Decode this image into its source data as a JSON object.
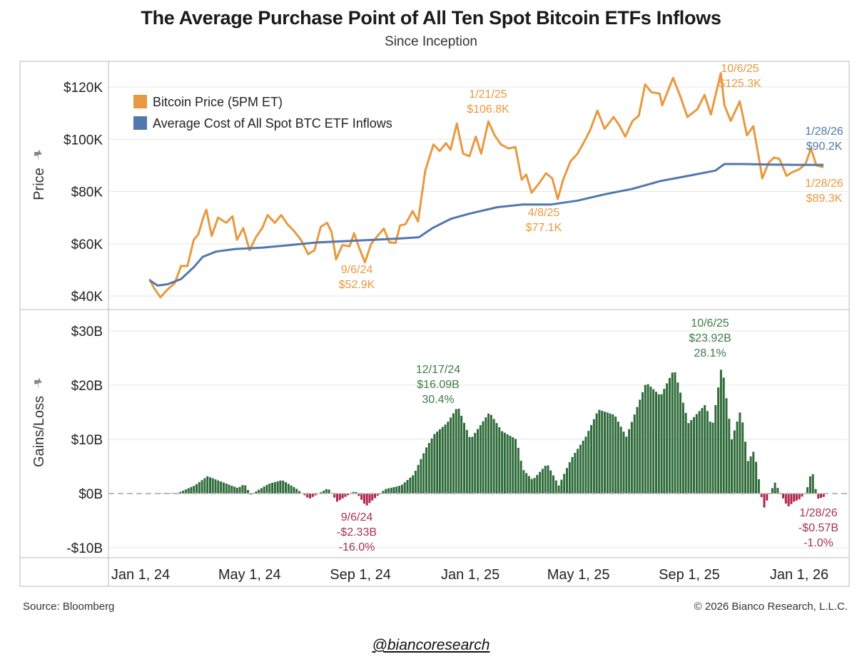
{
  "header": {
    "title": "The Average Purchase Point of All Ten Spot Bitcoin ETFs Inflows",
    "subtitle": "Since Inception"
  },
  "footer": {
    "source": "Source: Bloomberg",
    "copyright": "© 2026 Bianco Research, L.L.C.",
    "handle": "@biancoresearch"
  },
  "colors": {
    "btc_price": "#E8993F",
    "avg_cost": "#5178AC",
    "gain_bar": "#2F6B3A",
    "loss_bar": "#B0284A",
    "gain_label": "#3E7B45",
    "loss_label": "#A3334F",
    "grid": "#E6E6E6",
    "frame": "#BBBBBB"
  },
  "icons": [
    "pin-icon"
  ],
  "chart_data": [
    {
      "type": "line",
      "ylabel": "Price",
      "ylim": [
        40000,
        130000
      ],
      "yticks": [
        40000,
        60000,
        80000,
        100000,
        120000
      ],
      "ytick_labels": [
        "$40K",
        "$60K",
        "$80K",
        "$100K",
        "$120K"
      ],
      "xticks": [
        "2024-01-01",
        "2024-05-01",
        "2024-09-01",
        "2025-01-01",
        "2025-05-01",
        "2025-09-01",
        "2026-01-01"
      ],
      "xtick_labels": [
        "Jan 1, 24",
        "May 1, 24",
        "Sep 1, 24",
        "Jan 1, 25",
        "May 1, 25",
        "Sep 1, 25",
        "Jan 1, 26"
      ],
      "grid": true,
      "legend_position": "top-left",
      "series": [
        {
          "name": "Bitcoin Price (5PM ET)",
          "color": "#E8993F",
          "points": [
            [
              "2024-01-11",
              46500
            ],
            [
              "2024-01-16",
              43000
            ],
            [
              "2024-01-23",
              39500
            ],
            [
              "2024-01-31",
              42500
            ],
            [
              "2024-02-08",
              45000
            ],
            [
              "2024-02-15",
              51500
            ],
            [
              "2024-02-22",
              51500
            ],
            [
              "2024-02-29",
              61500
            ],
            [
              "2024-03-05",
              63500
            ],
            [
              "2024-03-11",
              70500
            ],
            [
              "2024-03-14",
              73000
            ],
            [
              "2024-03-20",
              63000
            ],
            [
              "2024-03-27",
              70000
            ],
            [
              "2024-04-05",
              68000
            ],
            [
              "2024-04-12",
              70500
            ],
            [
              "2024-04-17",
              61500
            ],
            [
              "2024-04-24",
              66000
            ],
            [
              "2024-05-01",
              57500
            ],
            [
              "2024-05-08",
              62500
            ],
            [
              "2024-05-15",
              66000
            ],
            [
              "2024-05-21",
              71000
            ],
            [
              "2024-05-29",
              68000
            ],
            [
              "2024-06-05",
              71000
            ],
            [
              "2024-06-12",
              67500
            ],
            [
              "2024-06-19",
              65000
            ],
            [
              "2024-06-27",
              61500
            ],
            [
              "2024-07-05",
              56000
            ],
            [
              "2024-07-12",
              57500
            ],
            [
              "2024-07-19",
              66500
            ],
            [
              "2024-07-26",
              68000
            ],
            [
              "2024-07-31",
              64500
            ],
            [
              "2024-08-05",
              54000
            ],
            [
              "2024-08-12",
              59500
            ],
            [
              "2024-08-20",
              59000
            ],
            [
              "2024-08-25",
              64000
            ],
            [
              "2024-08-30",
              59000
            ],
            [
              "2024-09-06",
              52900
            ],
            [
              "2024-09-13",
              60000
            ],
            [
              "2024-09-20",
              63000
            ],
            [
              "2024-09-27",
              65800
            ],
            [
              "2024-10-03",
              60600
            ],
            [
              "2024-10-10",
              60300
            ],
            [
              "2024-10-15",
              67000
            ],
            [
              "2024-10-21",
              67500
            ],
            [
              "2024-10-29",
              72500
            ],
            [
              "2024-11-04",
              68500
            ],
            [
              "2024-11-07",
              76000
            ],
            [
              "2024-11-12",
              88000
            ],
            [
              "2024-11-21",
              98000
            ],
            [
              "2024-11-28",
              95500
            ],
            [
              "2024-12-05",
              98500
            ],
            [
              "2024-12-10",
              96000
            ],
            [
              "2024-12-17",
              106000
            ],
            [
              "2024-12-24",
              94500
            ],
            [
              "2024-12-31",
              93500
            ],
            [
              "2025-01-07",
              101000
            ],
            [
              "2025-01-13",
              94500
            ],
            [
              "2025-01-21",
              106800
            ],
            [
              "2025-01-28",
              101500
            ],
            [
              "2025-02-04",
              98000
            ],
            [
              "2025-02-12",
              96500
            ],
            [
              "2025-02-20",
              97000
            ],
            [
              "2025-02-27",
              84500
            ],
            [
              "2025-03-04",
              86500
            ],
            [
              "2025-03-10",
              79500
            ],
            [
              "2025-03-18",
              83000
            ],
            [
              "2025-03-26",
              87000
            ],
            [
              "2025-04-02",
              85000
            ],
            [
              "2025-04-08",
              77100
            ],
            [
              "2025-04-14",
              84500
            ],
            [
              "2025-04-22",
              91500
            ],
            [
              "2025-04-30",
              94500
            ],
            [
              "2025-05-08",
              99500
            ],
            [
              "2025-05-14",
              103500
            ],
            [
              "2025-05-22",
              111000
            ],
            [
              "2025-05-30",
              104000
            ],
            [
              "2025-06-09",
              108500
            ],
            [
              "2025-06-15",
              105500
            ],
            [
              "2025-06-22",
              101000
            ],
            [
              "2025-06-30",
              107000
            ],
            [
              "2025-07-07",
              109000
            ],
            [
              "2025-07-14",
              121000
            ],
            [
              "2025-07-21",
              118000
            ],
            [
              "2025-07-30",
              117500
            ],
            [
              "2025-08-02",
              113000
            ],
            [
              "2025-08-14",
              123500
            ],
            [
              "2025-08-22",
              116500
            ],
            [
              "2025-08-30",
              108500
            ],
            [
              "2025-09-10",
              111500
            ],
            [
              "2025-09-18",
              117000
            ],
            [
              "2025-09-25",
              109500
            ],
            [
              "2025-10-06",
              125300
            ],
            [
              "2025-10-10",
              113000
            ],
            [
              "2025-10-17",
              107000
            ],
            [
              "2025-10-27",
              114500
            ],
            [
              "2025-11-04",
              101500
            ],
            [
              "2025-11-11",
              105000
            ],
            [
              "2025-11-18",
              91500
            ],
            [
              "2025-11-21",
              85000
            ],
            [
              "2025-11-28",
              91000
            ],
            [
              "2025-12-04",
              93000
            ],
            [
              "2025-12-10",
              92500
            ],
            [
              "2025-12-18",
              86000
            ],
            [
              "2025-12-25",
              87500
            ],
            [
              "2026-01-01",
              88500
            ],
            [
              "2026-01-08",
              90500
            ],
            [
              "2026-01-14",
              96500
            ],
            [
              "2026-01-20",
              90000
            ],
            [
              "2026-01-28",
              89300
            ]
          ]
        },
        {
          "name": "Average Cost of All Spot BTC ETF Inflows",
          "color": "#5178AC",
          "points": [
            [
              "2024-01-11",
              46000
            ],
            [
              "2024-01-20",
              44000
            ],
            [
              "2024-01-31",
              44500
            ],
            [
              "2024-02-15",
              46500
            ],
            [
              "2024-02-29",
              51000
            ],
            [
              "2024-03-10",
              55000
            ],
            [
              "2024-03-25",
              57000
            ],
            [
              "2024-04-15",
              58000
            ],
            [
              "2024-05-15",
              58500
            ],
            [
              "2024-06-15",
              59500
            ],
            [
              "2024-07-15",
              60500
            ],
            [
              "2024-08-15",
              61000
            ],
            [
              "2024-09-15",
              61500
            ],
            [
              "2024-10-15",
              62000
            ],
            [
              "2024-11-05",
              62500
            ],
            [
              "2024-11-20",
              66000
            ],
            [
              "2024-12-10",
              69500
            ],
            [
              "2024-12-31",
              71500
            ],
            [
              "2025-01-31",
              74000
            ],
            [
              "2025-02-28",
              75000
            ],
            [
              "2025-03-31",
              75000
            ],
            [
              "2025-04-30",
              76500
            ],
            [
              "2025-05-31",
              79000
            ],
            [
              "2025-06-30",
              81000
            ],
            [
              "2025-07-31",
              84000
            ],
            [
              "2025-08-31",
              86000
            ],
            [
              "2025-09-30",
              88000
            ],
            [
              "2025-10-10",
              90500
            ],
            [
              "2025-10-31",
              90500
            ],
            [
              "2025-11-30",
              90300
            ],
            [
              "2025-12-31",
              90200
            ],
            [
              "2026-01-28",
              90200
            ]
          ]
        }
      ],
      "annotations": [
        {
          "date": "2024-09-06",
          "value": 52900,
          "text": [
            "9/6/24",
            "$52.9K"
          ],
          "color": "#E8993F"
        },
        {
          "date": "2025-01-21",
          "value": 106800,
          "text": [
            "1/21/25",
            "$106.8K"
          ],
          "color": "#E8993F"
        },
        {
          "date": "2025-04-08",
          "value": 77100,
          "text": [
            "4/8/25",
            "$77.1K"
          ],
          "color": "#E8993F"
        },
        {
          "date": "2025-10-06",
          "value": 125300,
          "text": [
            "10/6/25",
            "$125.3K"
          ],
          "color": "#E8993F"
        },
        {
          "date": "2026-01-28",
          "value": 90200,
          "text": [
            "1/28/26",
            "$90.2K"
          ],
          "color": "#5178AC"
        },
        {
          "date": "2026-01-28",
          "value": 89300,
          "text": [
            "1/28/26",
            "$89.3K"
          ],
          "color": "#E8993F"
        }
      ]
    },
    {
      "type": "bar",
      "ylabel": "Gains/Loss",
      "ylim": [
        -10,
        32
      ],
      "yticks": [
        -10,
        0,
        10,
        20,
        30
      ],
      "ytick_labels": [
        "-$10B",
        "$0B",
        "$10B",
        "$20B",
        "$30B"
      ],
      "grid": true,
      "series": [
        {
          "name": "",
          "points": [
            [
              "2024-01-11",
              0
            ],
            [
              "2024-02-10",
              0.1
            ],
            [
              "2024-02-29",
              1.5
            ],
            [
              "2024-03-14",
              3.2
            ],
            [
              "2024-04-17",
              1.0
            ],
            [
              "2024-04-24",
              1.8
            ],
            [
              "2024-05-01",
              -0.2
            ],
            [
              "2024-05-21",
              1.8
            ],
            [
              "2024-06-05",
              2.5
            ],
            [
              "2024-06-20",
              1.0
            ],
            [
              "2024-07-05",
              -1.0
            ],
            [
              "2024-07-26",
              1.0
            ],
            [
              "2024-08-05",
              -1.5
            ],
            [
              "2024-08-25",
              0.5
            ],
            [
              "2024-09-06",
              -2.33
            ],
            [
              "2024-09-27",
              0.8
            ],
            [
              "2024-10-15",
              1.5
            ],
            [
              "2024-10-29",
              3.5
            ],
            [
              "2024-11-12",
              8.5
            ],
            [
              "2024-11-21",
              11.0
            ],
            [
              "2024-12-05",
              13.0
            ],
            [
              "2024-12-17",
              16.09
            ],
            [
              "2024-12-31",
              10.0
            ],
            [
              "2025-01-21",
              15.0
            ],
            [
              "2025-02-04",
              11.5
            ],
            [
              "2025-02-20",
              10.0
            ],
            [
              "2025-02-27",
              4.5
            ],
            [
              "2025-03-10",
              2.5
            ],
            [
              "2025-03-26",
              5.5
            ],
            [
              "2025-04-08",
              1.5
            ],
            [
              "2025-04-22",
              6.5
            ],
            [
              "2025-05-08",
              10.5
            ],
            [
              "2025-05-22",
              15.5
            ],
            [
              "2025-06-09",
              14.5
            ],
            [
              "2025-06-22",
              10.5
            ],
            [
              "2025-07-14",
              20.5
            ],
            [
              "2025-07-30",
              18.0
            ],
            [
              "2025-08-14",
              23.0
            ],
            [
              "2025-08-30",
              13.0
            ],
            [
              "2025-09-18",
              16.5
            ],
            [
              "2025-09-25",
              12.0
            ],
            [
              "2025-10-06",
              23.92
            ],
            [
              "2025-10-17",
              10.0
            ],
            [
              "2025-10-27",
              15.5
            ],
            [
              "2025-11-04",
              6.0
            ],
            [
              "2025-11-11",
              8.0
            ],
            [
              "2025-11-18",
              0.5
            ],
            [
              "2025-11-21",
              -3.0
            ],
            [
              "2025-11-28",
              0.0
            ],
            [
              "2025-12-04",
              2.0
            ],
            [
              "2025-12-18",
              -2.5
            ],
            [
              "2025-12-25",
              -1.5
            ],
            [
              "2026-01-01",
              -1.0
            ],
            [
              "2026-01-08",
              0.5
            ],
            [
              "2026-01-14",
              4.5
            ],
            [
              "2026-01-20",
              -1.0
            ],
            [
              "2026-01-28",
              -0.57
            ]
          ]
        }
      ],
      "annotations": [
        {
          "date": "2024-09-06",
          "value": -2.33,
          "text": [
            "9/6/24",
            "-$2.33B",
            "-16.0%"
          ],
          "color": "#A3334F"
        },
        {
          "date": "2024-12-17",
          "value": 16.09,
          "text": [
            "12/17/24",
            "$16.09B",
            "30.4%"
          ],
          "color": "#3E7B45"
        },
        {
          "date": "2025-10-06",
          "value": 23.92,
          "text": [
            "10/6/25",
            "$23.92B",
            "28.1%"
          ],
          "color": "#3E7B45"
        },
        {
          "date": "2026-01-28",
          "value": -0.57,
          "text": [
            "1/28/26",
            "-$0.57B",
            "-1.0%"
          ],
          "color": "#A3334F"
        }
      ]
    }
  ]
}
